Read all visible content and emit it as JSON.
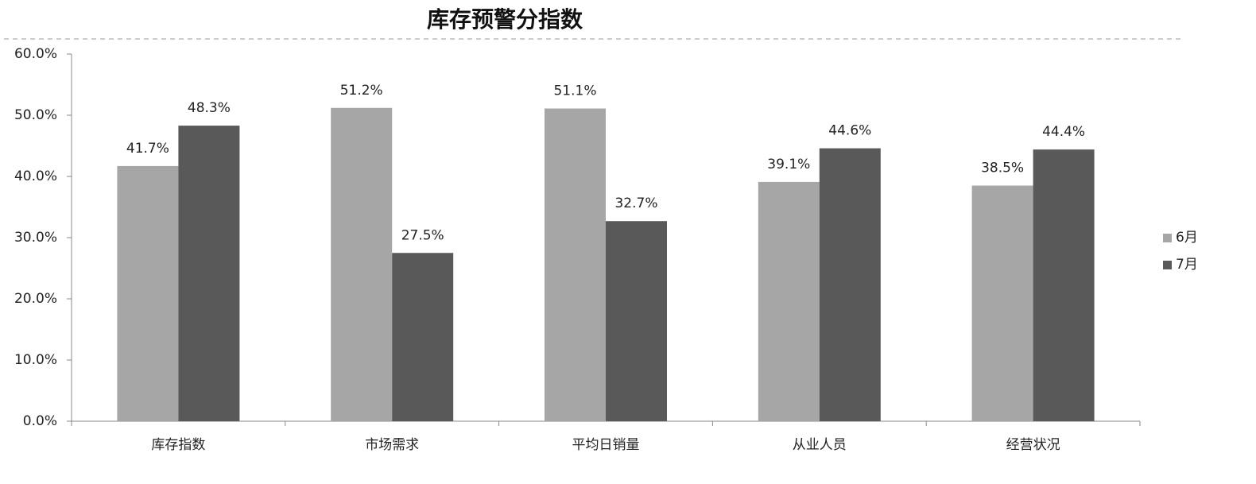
{
  "chart_data": {
    "type": "bar",
    "title": "库存预警分指数",
    "categories": [
      "库存指数",
      "市场需求",
      "平均日销量",
      "从业人员",
      "经营状况"
    ],
    "series": [
      {
        "name": "6月",
        "color": "#a6a6a6",
        "values": [
          41.7,
          51.2,
          51.1,
          39.1,
          38.5
        ],
        "value_labels": [
          "41.7%",
          "51.2%",
          "51.1%",
          "39.1%",
          "38.5%"
        ]
      },
      {
        "name": "7月",
        "color": "#595959",
        "values": [
          48.3,
          27.5,
          32.7,
          44.6,
          44.4
        ],
        "value_labels": [
          "48.3%",
          "27.5%",
          "32.7%",
          "44.6%",
          "44.4%"
        ]
      }
    ],
    "ylim": [
      0,
      60
    ],
    "yticks": [
      {
        "value": 0,
        "label": "0.0%"
      },
      {
        "value": 10,
        "label": "10.0%"
      },
      {
        "value": 20,
        "label": "20.0%"
      },
      {
        "value": 30,
        "label": "30.0%"
      },
      {
        "value": 40,
        "label": "40.0%"
      },
      {
        "value": 50,
        "label": "50.0%"
      },
      {
        "value": 60,
        "label": "60.0%"
      }
    ],
    "grid": false,
    "legend": "right"
  }
}
